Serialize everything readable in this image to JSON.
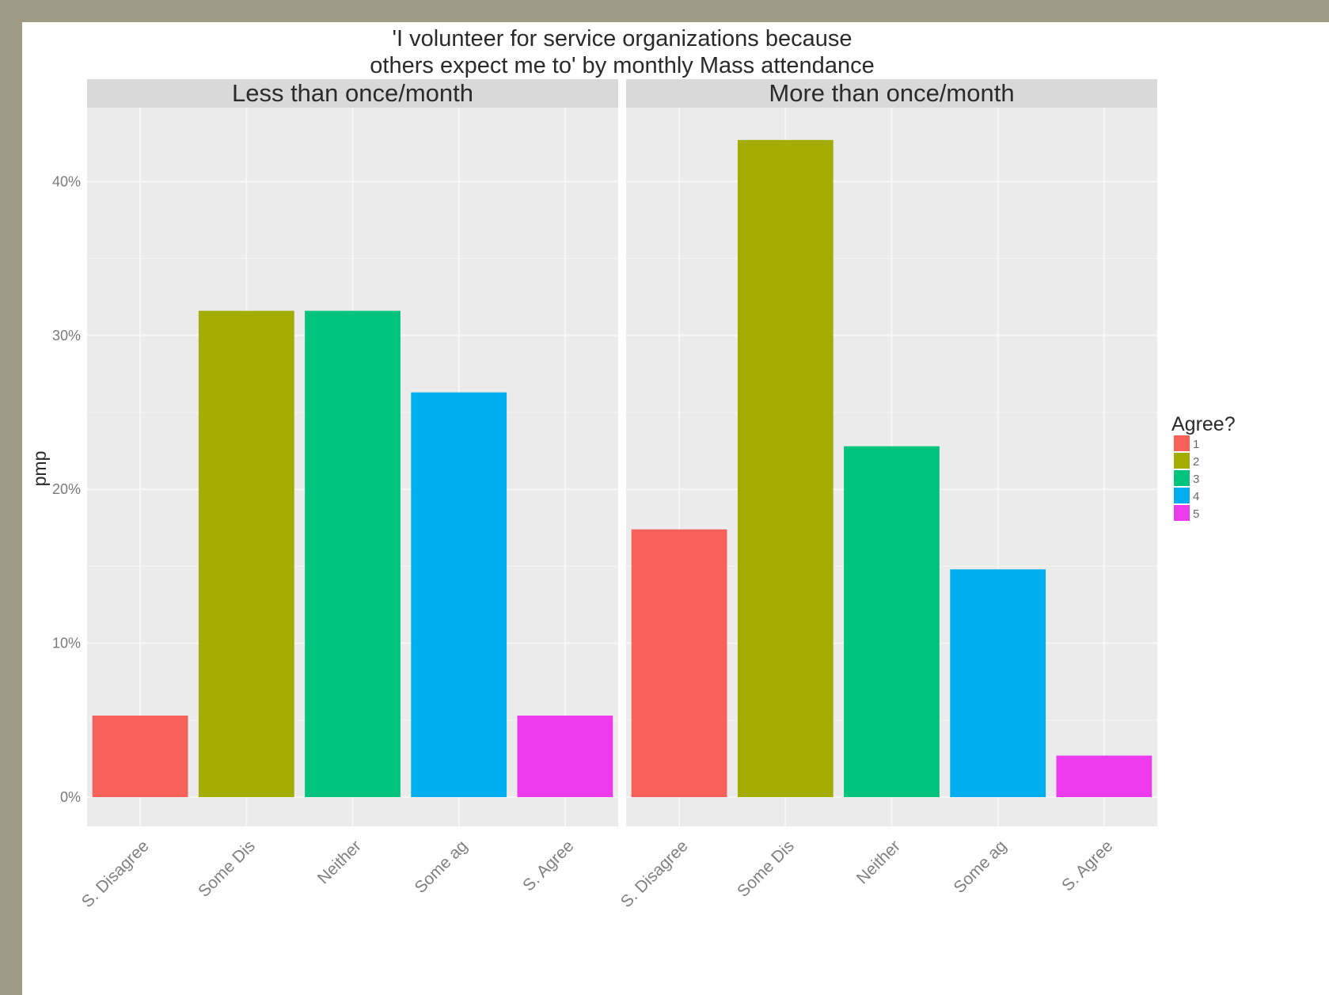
{
  "chart_data": {
    "type": "bar",
    "title_lines": [
      "'I volunteer for service organizations because",
      "others expect me to' by monthly Mass attendance"
    ],
    "ylabel": "pmp",
    "xlabel": "",
    "ylim": [
      -1.9,
      44.8
    ],
    "y_ticks": [
      0,
      10,
      20,
      30,
      40
    ],
    "y_tick_labels": [
      "0%",
      "10%",
      "20%",
      "30%",
      "40%"
    ],
    "grid": true,
    "categories": [
      "S. Disagree",
      "Some Dis",
      "Neither",
      "Some ag",
      "S. Agree"
    ],
    "panels": [
      {
        "name": "Less than once/month",
        "values": [
          5.3,
          31.6,
          31.6,
          26.3,
          5.3
        ]
      },
      {
        "name": "More than once/month",
        "values": [
          17.4,
          42.7,
          22.8,
          14.8,
          2.7
        ]
      }
    ],
    "legend": {
      "title": "Agree?",
      "placement": "right",
      "entries": [
        "1",
        "2",
        "3",
        "4",
        "5"
      ]
    },
    "colors": [
      "#f8605a",
      "#a3ad00",
      "#00c37d",
      "#00aeef",
      "#ec3bec"
    ]
  }
}
